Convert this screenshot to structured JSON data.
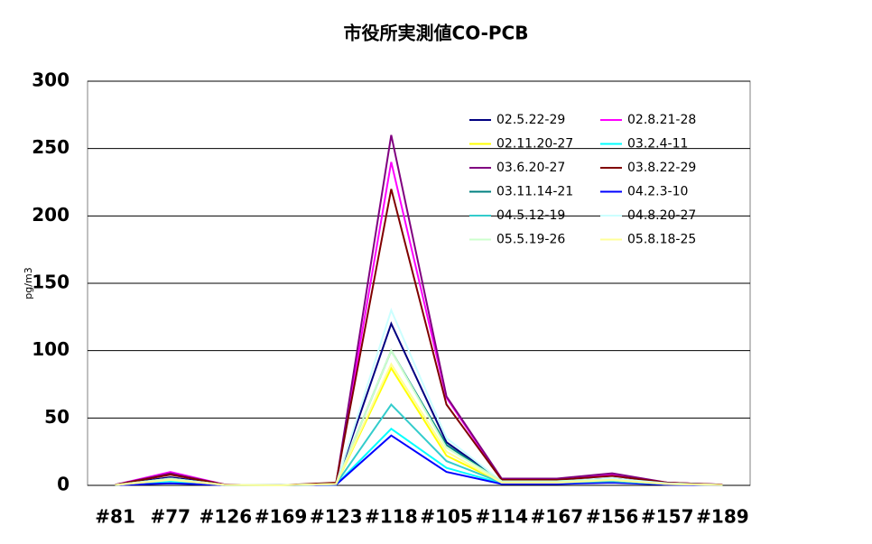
{
  "chart_data": {
    "type": "line",
    "title": "市役所実測値CO-PCB",
    "y_label": "pg/m3",
    "categories": [
      "#81",
      "#77",
      "#126",
      "#169",
      "#123",
      "#118",
      "#105",
      "#114",
      "#167",
      "#156",
      "#157",
      "#189"
    ],
    "ylim": [
      0,
      300
    ],
    "yticks": [
      0,
      50,
      100,
      150,
      200,
      250,
      300
    ],
    "grid": true,
    "series": [
      {
        "name": "02.5.22-29",
        "color": "#000080",
        "values": [
          0.5,
          6,
          0.5,
          0.1,
          1,
          120,
          32,
          3,
          3,
          5,
          1.5,
          0.5
        ]
      },
      {
        "name": "02.8.21-28",
        "color": "#ff00ff",
        "values": [
          0.5,
          10,
          0.5,
          0.1,
          1,
          240,
          65,
          4,
          4,
          8,
          2,
          0.5
        ]
      },
      {
        "name": "02.11.20-27",
        "color": "#ffff00",
        "values": [
          0.3,
          4,
          0.3,
          0.1,
          1,
          87,
          22,
          2,
          2,
          4,
          1,
          0.3
        ]
      },
      {
        "name": "03.2.4-11",
        "color": "#00ffff",
        "values": [
          0.2,
          3,
          0.2,
          0.1,
          0.5,
          42,
          13,
          1.5,
          1.5,
          3,
          1,
          0.3
        ]
      },
      {
        "name": "03.6.20-27",
        "color": "#800080",
        "values": [
          0.5,
          9,
          0.5,
          0.1,
          1,
          260,
          66,
          5,
          5,
          9,
          2,
          0.5
        ]
      },
      {
        "name": "03.8.22-29",
        "color": "#800000",
        "values": [
          0.5,
          8,
          0.5,
          0.1,
          2,
          220,
          60,
          4,
          4,
          7,
          2,
          0.5
        ]
      },
      {
        "name": "03.11.14-21",
        "color": "#008080",
        "values": [
          0.3,
          5,
          0.3,
          0.1,
          1,
          100,
          30,
          3,
          3,
          5,
          1.5,
          0.3
        ]
      },
      {
        "name": "04.2.3-10",
        "color": "#0000ff",
        "values": [
          0.2,
          1.5,
          0.2,
          0.1,
          0.5,
          37,
          10,
          1,
          1,
          2,
          0.5,
          0.2
        ]
      },
      {
        "name": "04.5.12-19",
        "color": "#33cccc",
        "values": [
          0.3,
          4,
          0.3,
          0.1,
          1,
          60,
          18,
          2,
          2,
          3,
          1,
          0.3
        ]
      },
      {
        "name": "04.8.20-27",
        "color": "#ccffff",
        "values": [
          0.3,
          5,
          0.3,
          0.1,
          1,
          130,
          35,
          3,
          3,
          5,
          1.5,
          0.3
        ]
      },
      {
        "name": "05.5.19-26",
        "color": "#ccffcc",
        "values": [
          0.3,
          5,
          0.3,
          0.1,
          1,
          100,
          28,
          3,
          3,
          4,
          1,
          0.3
        ]
      },
      {
        "name": "05.8.18-25",
        "color": "#ffff99",
        "values": [
          0.3,
          4,
          0.3,
          0.1,
          1,
          90,
          25,
          2,
          2,
          4,
          1,
          0.3
        ]
      }
    ]
  }
}
